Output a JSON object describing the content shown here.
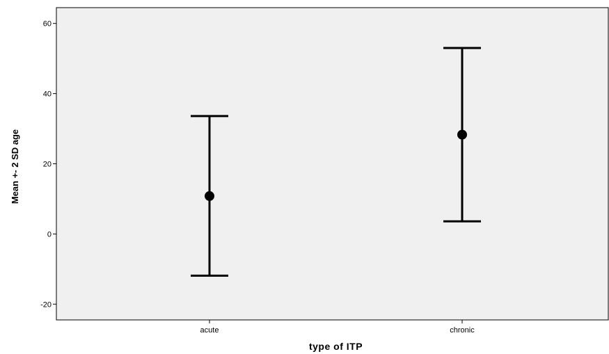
{
  "chart_data": {
    "type": "errorbar",
    "xlabel": "type of ITP",
    "ylabel": "Mean +- 2 SD age",
    "categories": [
      "acute",
      "chronic"
    ],
    "points": [
      {
        "category": "acute",
        "mean": 10.8,
        "lower": -11.9,
        "upper": 33.6
      },
      {
        "category": "chronic",
        "mean": 28.3,
        "lower": 3.6,
        "upper": 53.0
      }
    ],
    "yticks": [
      -20,
      0,
      20,
      40,
      60
    ],
    "ylim": [
      -24.5,
      64.5
    ],
    "grid": false,
    "colors": {
      "plot_background": "#f0f0f0",
      "marks": "#000000"
    }
  }
}
